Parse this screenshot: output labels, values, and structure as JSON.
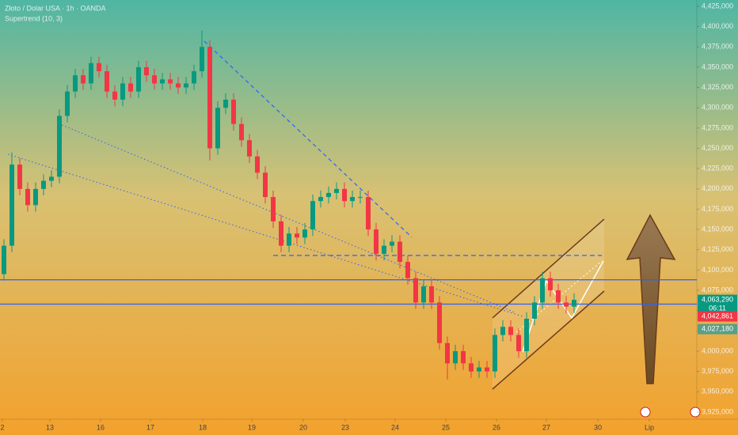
{
  "chart_data": {
    "type": "candlestick",
    "title": "Złoto / Dolar USA · 1h · OANDA",
    "subtitle": "Supertrend (10, 3)",
    "up_color": "#089981",
    "down_color": "#f23645",
    "open": [
      4095000,
      4130000,
      4230000,
      4200000,
      4180000,
      4200000,
      4210000,
      4215000,
      4290000,
      4320000,
      4340000,
      4330000,
      4355000,
      4345000,
      4320000,
      4310000,
      4330000,
      4320000,
      4350000,
      4340000,
      4330000,
      4335000,
      4330000,
      4325000,
      4330000,
      4345000,
      4375000,
      4250000,
      4300000,
      4310000,
      4280000,
      4260000,
      4240000,
      4220000,
      4190000,
      4160000,
      4130000,
      4145000,
      4140000,
      4150000,
      4185000,
      4190000,
      4195000,
      4200000,
      4185000,
      4190000,
      4190000,
      4150000,
      4120000,
      4130000,
      4135000,
      4110000,
      4090000,
      4060000,
      4080000,
      4060000,
      4010000,
      3985000,
      4000000,
      3985000,
      3975000,
      3980000,
      3975000,
      4020000,
      4030000,
      4020000,
      4000000,
      4040000,
      4060000,
      4090000,
      4075000,
      4060000,
      4055000
    ],
    "high": [
      4138000,
      4245000,
      4238000,
      4208000,
      4208000,
      4218000,
      4223000,
      4298000,
      4328000,
      4348000,
      4348000,
      4363000,
      4363000,
      4353000,
      4328000,
      4338000,
      4338000,
      4358000,
      4358000,
      4348000,
      4343000,
      4343000,
      4338000,
      4338000,
      4353000,
      4395000,
      4383000,
      4308000,
      4318000,
      4318000,
      4288000,
      4268000,
      4248000,
      4228000,
      4198000,
      4168000,
      4153000,
      4153000,
      4158000,
      4193000,
      4198000,
      4203000,
      4208000,
      4208000,
      4198000,
      4198000,
      4198000,
      4158000,
      4138000,
      4143000,
      4143000,
      4118000,
      4098000,
      4088000,
      4088000,
      4068000,
      4018000,
      4008000,
      4008000,
      3993000,
      3988000,
      3988000,
      4028000,
      4038000,
      4038000,
      4028000,
      4048000,
      4068000,
      4098000,
      4098000,
      4083000,
      4068000,
      4071290
    ],
    "low": [
      4087000,
      4122000,
      4192000,
      4172000,
      4172000,
      4192000,
      4202000,
      4207000,
      4282000,
      4312000,
      4322000,
      4322000,
      4337000,
      4312000,
      4302000,
      4302000,
      4312000,
      4312000,
      4332000,
      4322000,
      4322000,
      4322000,
      4317000,
      4317000,
      4322000,
      4337000,
      4235000,
      4242000,
      4292000,
      4272000,
      4252000,
      4232000,
      4212000,
      4182000,
      4152000,
      4122000,
      4122000,
      4132000,
      4132000,
      4142000,
      4177000,
      4182000,
      4187000,
      4177000,
      4177000,
      4182000,
      4142000,
      4112000,
      4112000,
      4122000,
      4102000,
      4082000,
      4052000,
      4052000,
      4052000,
      4002000,
      3965000,
      3977000,
      3977000,
      3967000,
      3967000,
      3967000,
      3967000,
      4012000,
      4012000,
      3992000,
      3992000,
      4032000,
      4052000,
      4067000,
      4052000,
      4047000,
      4047000
    ],
    "close": [
      4130000,
      4230000,
      4200000,
      4180000,
      4200000,
      4210000,
      4215000,
      4290000,
      4320000,
      4340000,
      4330000,
      4355000,
      4345000,
      4320000,
      4310000,
      4330000,
      4320000,
      4350000,
      4340000,
      4330000,
      4335000,
      4330000,
      4325000,
      4330000,
      4345000,
      4375000,
      4250000,
      4300000,
      4310000,
      4280000,
      4260000,
      4240000,
      4220000,
      4190000,
      4160000,
      4130000,
      4145000,
      4140000,
      4150000,
      4185000,
      4190000,
      4195000,
      4200000,
      4185000,
      4190000,
      4190000,
      4150000,
      4120000,
      4130000,
      4135000,
      4110000,
      4090000,
      4060000,
      4080000,
      4060000,
      4010000,
      3985000,
      4000000,
      3985000,
      3975000,
      3980000,
      3975000,
      4020000,
      4030000,
      4020000,
      4000000,
      4040000,
      4060000,
      4090000,
      4075000,
      4060000,
      4055000,
      4063290
    ],
    "xlim": [
      0,
      88
    ],
    "xticks": [
      {
        "value": 0.3,
        "label": "2"
      },
      {
        "value": 6.3,
        "label": "13"
      },
      {
        "value": 12.7,
        "label": "16"
      },
      {
        "value": 19,
        "label": "17"
      },
      {
        "value": 25.6,
        "label": "18"
      },
      {
        "value": 31.8,
        "label": "19"
      },
      {
        "value": 38.3,
        "label": "20"
      },
      {
        "value": 43.6,
        "label": "23"
      },
      {
        "value": 49.9,
        "label": "24"
      },
      {
        "value": 56.3,
        "label": "25"
      },
      {
        "value": 62.7,
        "label": "26"
      },
      {
        "value": 69,
        "label": "27"
      },
      {
        "value": 75.5,
        "label": "30"
      },
      {
        "value": 82,
        "label": "Lip"
      }
    ],
    "ylim": [
      3916200,
      4432800
    ],
    "yticks": [
      {
        "value": 3925000,
        "label": "3,925,000"
      },
      {
        "value": 3950000,
        "label": "3,950,000"
      },
      {
        "value": 3975000,
        "label": "3,975,000"
      },
      {
        "value": 4000000,
        "label": "4,000,000"
      },
      {
        "value": 4025000,
        "label": "4,025,000"
      },
      {
        "value": 4050000,
        "label": "4,050,000"
      },
      {
        "value": 4075000,
        "label": "4,075,000"
      },
      {
        "value": 4100000,
        "label": "4,100,000"
      },
      {
        "value": 4125000,
        "label": "4,125,000"
      },
      {
        "value": 4150000,
        "label": "4,150,000"
      },
      {
        "value": 4175000,
        "label": "4,175,000"
      },
      {
        "value": 4200000,
        "label": "4,200,000"
      },
      {
        "value": 4225000,
        "label": "4,225,000"
      },
      {
        "value": 4250000,
        "label": "4,250,000"
      },
      {
        "value": 4275000,
        "label": "4,275,000"
      },
      {
        "value": 4300000,
        "label": "4,300,000"
      },
      {
        "value": 4325000,
        "label": "4,325,000"
      },
      {
        "value": 4350000,
        "label": "4,350,000"
      },
      {
        "value": 4375000,
        "label": "4,375,000"
      },
      {
        "value": 4400000,
        "label": "4,400,000"
      },
      {
        "value": 4425000,
        "label": "4,425,000"
      }
    ],
    "horizontal_lines": [
      {
        "value": 4088000,
        "color": "#2962ff",
        "dashed": false
      },
      {
        "value": 4058000,
        "color": "#2962ff",
        "dashed": false
      },
      {
        "value": 4118000,
        "color": "#2962ff",
        "dashed": true
      }
    ],
    "price_labels": [
      {
        "value": 4063290,
        "label": "4,063,290",
        "color": "#089981"
      },
      {
        "value": 4042861,
        "label": "4,042,861",
        "color": "#f23645"
      },
      {
        "value": 4027180,
        "label": "4,027,180",
        "color": "#5b9e86"
      }
    ],
    "countdown": "06:11"
  }
}
